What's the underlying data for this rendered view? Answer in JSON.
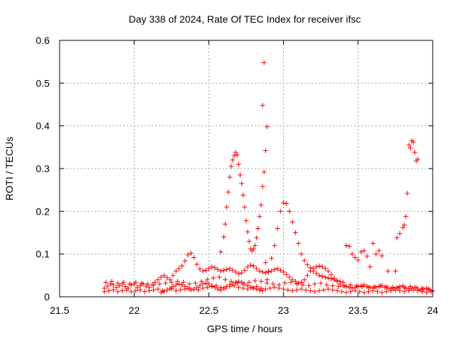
{
  "chart_data": {
    "type": "scatter",
    "title": "Day 338 of 2024, Rate Of TEC Index for receiver ifsc",
    "xlabel": "GPS time / hours",
    "ylabel": "ROTI / TECUs",
    "xlim": [
      21.5,
      24
    ],
    "ylim": [
      0,
      0.6
    ],
    "xticks": [
      "21.5",
      "22",
      "22.5",
      "23",
      "23.5",
      "24"
    ],
    "yticks": [
      "0",
      "0.1",
      "0.2",
      "0.3",
      "0.4",
      "0.5",
      "0.6"
    ],
    "grid": true,
    "marker": "plus",
    "color": "#ff0000",
    "series": [
      {
        "name": "ROTI",
        "x": [
          21.8,
          21.82,
          21.84,
          21.86,
          21.88,
          21.9,
          21.92,
          21.94,
          21.96,
          21.98,
          22.0,
          22.02,
          22.04,
          22.06,
          22.08,
          22.1,
          22.12,
          22.14,
          22.16,
          22.18,
          22.2,
          22.22,
          22.24,
          22.26,
          22.28,
          22.3,
          22.32,
          22.34,
          22.36,
          22.38,
          22.4,
          22.42,
          22.44,
          22.46,
          22.48,
          22.5,
          22.52,
          22.54,
          22.56,
          22.58,
          22.6,
          22.62,
          22.64,
          22.66,
          22.68,
          22.7,
          22.72,
          22.74,
          22.76,
          22.78,
          22.8,
          22.82,
          22.84,
          22.86,
          22.88,
          22.9,
          22.92,
          22.94,
          22.96,
          22.98,
          23.0,
          23.02,
          23.04,
          23.06,
          23.08,
          23.1,
          23.12,
          23.14,
          23.16,
          23.18,
          23.2,
          23.22,
          23.24,
          23.26,
          23.28,
          23.3,
          23.32,
          23.34,
          23.36,
          23.38,
          23.4,
          23.42,
          23.44,
          23.46,
          23.48,
          23.5,
          23.52,
          23.54,
          23.56,
          23.58,
          23.6,
          23.62,
          23.64,
          23.66,
          23.68,
          23.7,
          23.72,
          23.74,
          23.76,
          23.78,
          23.8,
          23.82,
          23.84,
          23.86,
          23.88,
          23.9,
          23.92,
          23.94,
          23.96,
          23.98,
          24.0,
          21.8,
          21.83,
          21.86,
          21.89,
          21.92,
          21.95,
          21.98,
          22.01,
          22.04,
          22.07,
          22.1,
          22.13,
          22.16,
          22.19,
          22.22,
          22.25,
          22.28,
          22.31,
          22.34,
          22.37,
          22.4,
          22.43,
          22.46,
          22.49,
          22.52,
          22.55,
          22.58,
          22.61,
          22.64,
          22.67,
          22.7,
          22.73,
          22.76,
          22.79,
          22.82,
          22.85,
          22.88,
          22.91,
          22.94,
          22.97,
          23.0,
          23.03,
          23.06,
          23.09,
          23.12,
          23.15,
          23.18,
          23.21,
          23.24,
          23.27,
          23.3,
          23.33,
          23.36,
          23.39,
          23.42,
          23.45,
          23.48,
          23.51,
          23.54,
          23.57,
          23.6,
          23.63,
          23.66,
          23.69,
          23.72,
          23.75,
          23.78,
          23.81,
          23.84,
          23.87,
          23.9,
          23.93,
          23.96,
          23.99,
          21.81,
          21.85,
          21.89,
          21.93,
          21.97,
          22.01,
          22.05,
          22.09,
          22.13,
          22.17,
          22.21,
          22.25,
          22.29,
          22.33,
          22.37,
          22.41,
          22.45,
          22.49,
          22.53,
          22.57,
          22.61,
          22.65,
          22.69,
          22.73,
          22.77,
          22.81,
          22.85,
          22.89,
          22.93,
          22.97,
          23.01,
          23.05,
          23.09,
          23.13,
          23.17,
          23.21,
          23.25,
          23.29,
          23.33,
          23.37,
          23.41,
          23.45,
          23.49,
          23.53,
          23.57,
          23.61,
          23.65,
          23.69,
          23.73,
          23.77,
          23.81,
          23.85,
          23.89,
          23.93,
          23.97,
          22.18,
          22.2,
          22.22,
          22.24,
          22.26,
          22.28,
          22.3,
          22.32,
          22.34,
          22.36,
          22.38,
          22.4,
          22.42,
          22.44,
          22.46,
          22.48,
          22.5,
          22.52,
          22.54,
          22.56,
          22.58,
          22.6,
          22.62,
          22.64,
          22.66,
          22.68,
          22.7,
          22.72,
          22.74,
          22.76,
          22.78,
          22.8,
          22.82,
          22.84,
          22.86,
          22.58,
          22.6,
          22.61,
          22.62,
          22.63,
          22.64,
          22.65,
          22.66,
          22.67,
          22.68,
          22.69,
          22.7,
          22.71,
          22.72,
          22.73,
          22.74,
          22.75,
          22.76,
          22.77,
          22.78,
          22.79,
          22.8,
          22.81,
          22.82,
          22.83,
          22.84,
          22.85,
          22.86,
          22.87,
          22.88,
          22.89,
          22.86,
          22.87,
          22.88,
          22.89,
          22.9,
          22.92,
          22.94,
          22.96,
          22.98,
          23.0,
          23.02,
          23.04,
          23.06,
          23.08,
          23.1,
          23.12,
          23.14,
          23.16,
          23.18,
          23.2,
          23.22,
          23.24,
          23.26,
          23.28,
          23.3,
          23.32,
          23.34,
          23.36,
          23.38,
          23.4,
          23.42,
          23.44,
          23.46,
          23.48,
          23.5,
          23.52,
          23.54,
          23.56,
          23.58,
          23.6,
          23.62,
          23.64,
          23.66,
          23.7,
          23.75,
          23.76,
          23.78,
          23.8,
          23.81,
          23.82,
          23.83,
          23.84,
          23.85,
          23.86,
          23.87,
          23.88,
          23.89,
          23.9
        ],
        "y": [
          0.02,
          0.025,
          0.03,
          0.028,
          0.022,
          0.026,
          0.03,
          0.024,
          0.02,
          0.028,
          0.03,
          0.022,
          0.026,
          0.03,
          0.025,
          0.022,
          0.028,
          0.034,
          0.04,
          0.046,
          0.05,
          0.045,
          0.04,
          0.05,
          0.06,
          0.066,
          0.072,
          0.084,
          0.098,
          0.102,
          0.092,
          0.076,
          0.065,
          0.06,
          0.062,
          0.066,
          0.07,
          0.068,
          0.064,
          0.06,
          0.062,
          0.064,
          0.066,
          0.062,
          0.058,
          0.054,
          0.056,
          0.062,
          0.07,
          0.074,
          0.072,
          0.066,
          0.06,
          0.058,
          0.056,
          0.058,
          0.06,
          0.064,
          0.066,
          0.062,
          0.058,
          0.052,
          0.046,
          0.04,
          0.036,
          0.032,
          0.034,
          0.04,
          0.05,
          0.06,
          0.066,
          0.07,
          0.072,
          0.07,
          0.066,
          0.06,
          0.052,
          0.044,
          0.036,
          0.03,
          0.026,
          0.024,
          0.022,
          0.02,
          0.022,
          0.024,
          0.026,
          0.028,
          0.024,
          0.022,
          0.02,
          0.022,
          0.024,
          0.026,
          0.022,
          0.02,
          0.018,
          0.02,
          0.022,
          0.024,
          0.026,
          0.02,
          0.018,
          0.02,
          0.022,
          0.018,
          0.016,
          0.018,
          0.02,
          0.016,
          0.014,
          0.012,
          0.014,
          0.016,
          0.012,
          0.014,
          0.016,
          0.012,
          0.014,
          0.016,
          0.012,
          0.014,
          0.016,
          0.018,
          0.014,
          0.016,
          0.018,
          0.014,
          0.016,
          0.018,
          0.02,
          0.018,
          0.016,
          0.02,
          0.022,
          0.024,
          0.026,
          0.022,
          0.02,
          0.024,
          0.026,
          0.022,
          0.02,
          0.018,
          0.022,
          0.024,
          0.02,
          0.018,
          0.02,
          0.022,
          0.02,
          0.018,
          0.016,
          0.014,
          0.016,
          0.018,
          0.016,
          0.014,
          0.012,
          0.014,
          0.016,
          0.018,
          0.016,
          0.014,
          0.012,
          0.01,
          0.012,
          0.014,
          0.012,
          0.01,
          0.012,
          0.014,
          0.012,
          0.01,
          0.012,
          0.014,
          0.016,
          0.014,
          0.012,
          0.014,
          0.016,
          0.014,
          0.012,
          0.01,
          0.012,
          0.034,
          0.036,
          0.032,
          0.034,
          0.03,
          0.034,
          0.032,
          0.03,
          0.028,
          0.03,
          0.032,
          0.034,
          0.036,
          0.034,
          0.03,
          0.032,
          0.036,
          0.04,
          0.044,
          0.046,
          0.04,
          0.036,
          0.032,
          0.03,
          0.034,
          0.038,
          0.036,
          0.032,
          0.03,
          0.028,
          0.032,
          0.034,
          0.03,
          0.028,
          0.026,
          0.03,
          0.032,
          0.028,
          0.026,
          0.024,
          0.026,
          0.028,
          0.026,
          0.024,
          0.022,
          0.024,
          0.026,
          0.024,
          0.022,
          0.02,
          0.022,
          0.024,
          0.022,
          0.02,
          0.018,
          0.01,
          0.012,
          0.016,
          0.02,
          0.024,
          0.028,
          0.03,
          0.028,
          0.024,
          0.02,
          0.016,
          0.018,
          0.022,
          0.026,
          0.03,
          0.032,
          0.03,
          0.026,
          0.022,
          0.018,
          0.016,
          0.02,
          0.024,
          0.028,
          0.03,
          0.034,
          0.036,
          0.034,
          0.03,
          0.026,
          0.022,
          0.02,
          0.018,
          0.016,
          0.014,
          0.105,
          0.14,
          0.17,
          0.21,
          0.245,
          0.28,
          0.305,
          0.32,
          0.33,
          0.338,
          0.332,
          0.31,
          0.285,
          0.265,
          0.238,
          0.21,
          0.178,
          0.152,
          0.13,
          0.112,
          0.108,
          0.112,
          0.12,
          0.138,
          0.16,
          0.188,
          0.215,
          0.258,
          0.292,
          0.342,
          0.398,
          0.448,
          0.548,
          0.08,
          0.04,
          0.06,
          0.09,
          0.12,
          0.16,
          0.2,
          0.22,
          0.218,
          0.2,
          0.175,
          0.15,
          0.125,
          0.1,
          0.085,
          0.075,
          0.068,
          0.06,
          0.055,
          0.05,
          0.048,
          0.046,
          0.044,
          0.042,
          0.04,
          0.038,
          0.036,
          0.034,
          0.12,
          0.118,
          0.1,
          0.092,
          0.086,
          0.105,
          0.108,
          0.095,
          0.07,
          0.125,
          0.1,
          0.108,
          0.096,
          0.06,
          0.06,
          0.138,
          0.148,
          0.162,
          0.168,
          0.188,
          0.242,
          0.355,
          0.348,
          0.365,
          0.362,
          0.338,
          0.318,
          0.322
        ]
      }
    ]
  }
}
